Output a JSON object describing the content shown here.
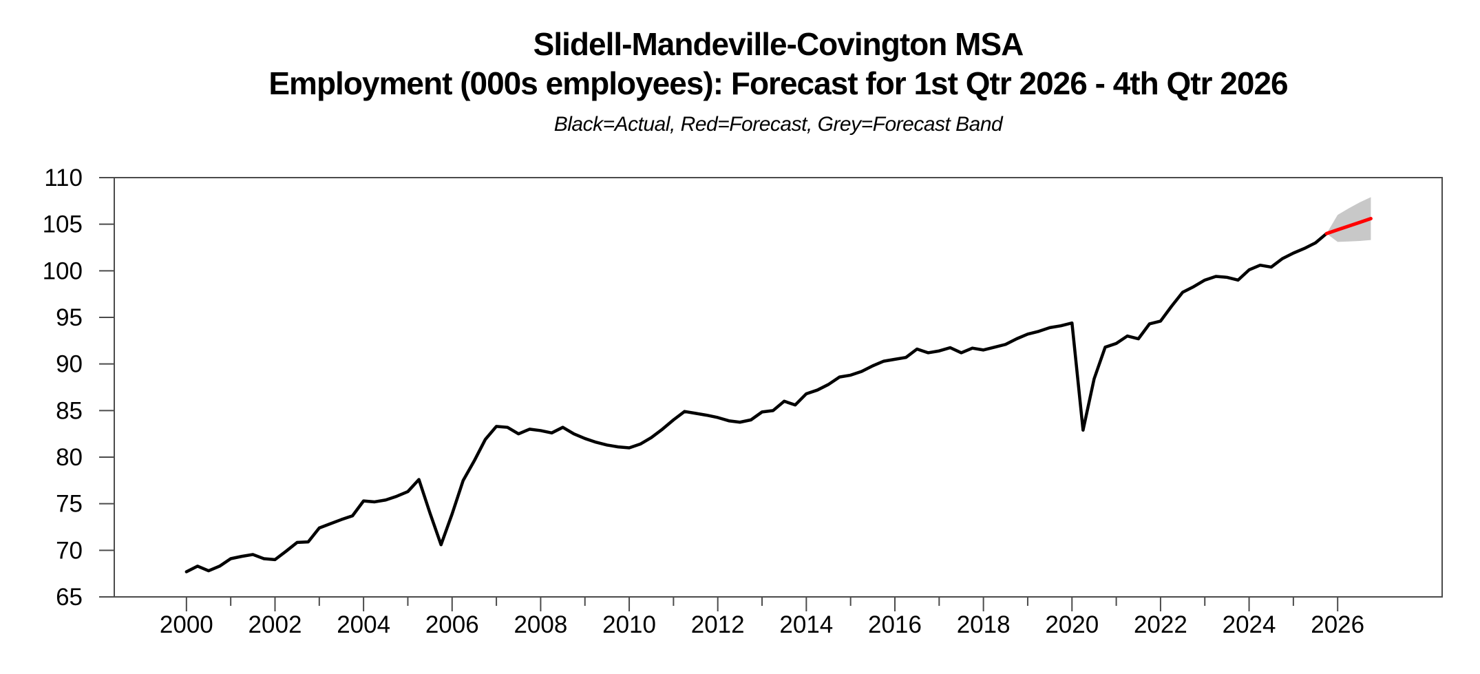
{
  "header": {
    "title_line1": "Slidell-Mandeville-Covington MSA",
    "title_line2": "Employment (000s employees): Forecast for 1st Qtr 2026 - 4th Qtr 2026",
    "subtitle": "Black=Actual, Red=Forecast, Grey=Forecast Band"
  },
  "chart_data": {
    "type": "line",
    "title": "Slidell-Mandeville-Covington MSA",
    "subtitle": "Employment (000s employees): Forecast for 1st Qtr 2026 - 4th Qtr 2026",
    "legend_note": "Black=Actual, Red=Forecast, Grey=Forecast Band",
    "legend": [
      {
        "label": "Actual",
        "color": "#000000"
      },
      {
        "label": "Forecast",
        "color": "#ff0000"
      },
      {
        "label": "Forecast Band",
        "color": "#c8c8c8"
      }
    ],
    "xlabel": "",
    "ylabel": "",
    "units": "thousands of employees",
    "frequency": "quarterly",
    "grid": false,
    "xlim": [
      1998.37,
      2028.36
    ],
    "ylim": [
      65,
      110
    ],
    "yticks": [
      65,
      70,
      75,
      80,
      85,
      90,
      95,
      100,
      105,
      110
    ],
    "xticks_major": [
      2000,
      2002,
      2004,
      2006,
      2008,
      2010,
      2012,
      2014,
      2016,
      2018,
      2020,
      2022,
      2024,
      2026
    ],
    "xticks_minor": [
      2001,
      2003,
      2005,
      2007,
      2009,
      2011,
      2013,
      2015,
      2017,
      2019,
      2021,
      2023,
      2025
    ],
    "series": [
      {
        "name": "actual",
        "color": "#000000",
        "first_period": "2000Q1",
        "last_period": "2025Q4",
        "x_start": 2000.0,
        "x_step": 0.25,
        "values": [
          67.7,
          68.3,
          67.8,
          68.3,
          69.1,
          69.35,
          69.55,
          69.1,
          69.0,
          69.9,
          70.85,
          70.9,
          72.4,
          72.85,
          73.3,
          73.7,
          75.3,
          75.2,
          75.4,
          75.8,
          76.3,
          77.6,
          74.0,
          70.6,
          73.9,
          77.5,
          79.6,
          81.9,
          83.3,
          83.2,
          82.5,
          83.0,
          82.85,
          82.6,
          83.2,
          82.5,
          82.0,
          81.6,
          81.3,
          81.1,
          81.0,
          81.4,
          82.1,
          83.0,
          84.0,
          84.9,
          84.7,
          84.5,
          84.25,
          83.9,
          83.75,
          84.0,
          84.85,
          85.0,
          86.0,
          85.6,
          86.8,
          87.2,
          87.8,
          88.6,
          88.8,
          89.2,
          89.8,
          90.3,
          90.5,
          90.7,
          91.6,
          91.2,
          91.4,
          91.75,
          91.2,
          91.7,
          91.5,
          91.8,
          92.1,
          92.7,
          93.2,
          93.5,
          93.9,
          94.1,
          94.4,
          82.9,
          88.4,
          91.8,
          92.2,
          93.0,
          92.7,
          94.3,
          94.6,
          96.2,
          97.7,
          98.3,
          99.0,
          99.4,
          99.3,
          99.0,
          100.1,
          100.6,
          100.4,
          101.3,
          101.9,
          102.4,
          103.0,
          104.0
        ]
      },
      {
        "name": "forecast",
        "color": "#ff0000",
        "first_period": "2026Q1",
        "last_period": "2026Q4",
        "x": [
          2025.75,
          2026.0,
          2026.25,
          2026.5,
          2026.75
        ],
        "values": [
          104.0,
          104.4,
          104.8,
          105.2,
          105.6
        ]
      }
    ],
    "band": {
      "name": "forecast-band",
      "color": "#c8c8c8",
      "x": [
        2025.75,
        2026.0,
        2026.25,
        2026.5,
        2026.75
      ],
      "upper": [
        104.0,
        106.0,
        106.7,
        107.35,
        107.9
      ],
      "lower": [
        104.0,
        103.1,
        103.15,
        103.2,
        103.3
      ]
    }
  }
}
